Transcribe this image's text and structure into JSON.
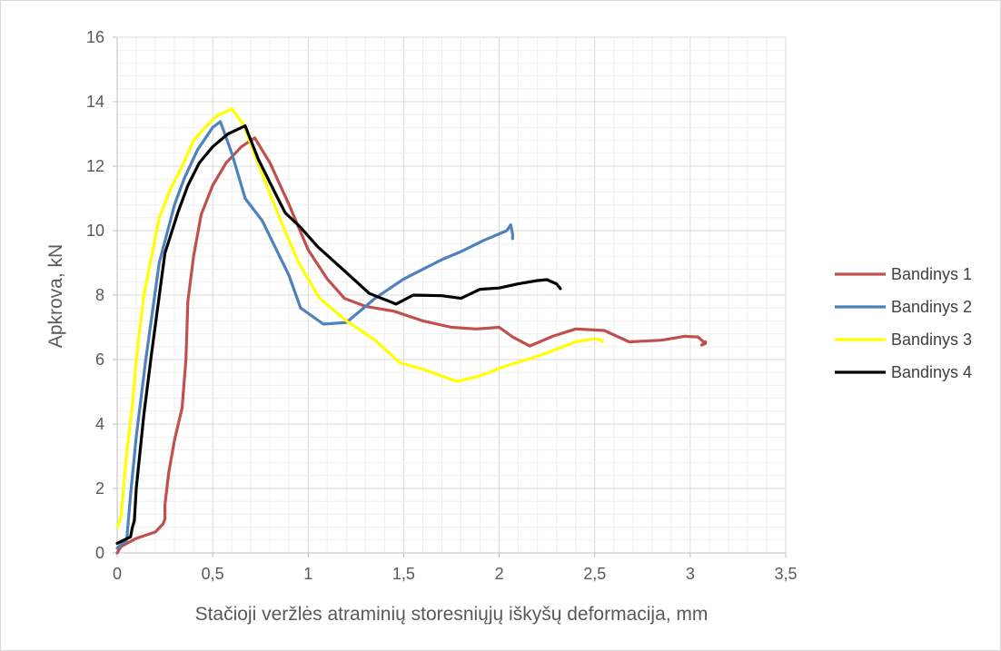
{
  "chart_data": {
    "type": "line",
    "title": "",
    "xlabel": "Stačioji veržlės atraminių storesniųjų iškyšų deformacija, mm",
    "ylabel": "Apkrova, kN",
    "xlim": [
      0,
      3.5
    ],
    "ylim": [
      0,
      16
    ],
    "x_ticks": [
      "0",
      "0,5",
      "1",
      "1,5",
      "2",
      "2,5",
      "3",
      "3,5"
    ],
    "x_tick_values": [
      0,
      0.5,
      1,
      1.5,
      2,
      2.5,
      3,
      3.5
    ],
    "y_ticks": [
      "0",
      "2",
      "4",
      "6",
      "8",
      "10",
      "12",
      "14",
      "16"
    ],
    "y_tick_values": [
      0,
      2,
      4,
      6,
      8,
      10,
      12,
      14,
      16
    ],
    "grid": "major and minor",
    "legend_position": "right",
    "series": [
      {
        "name": "Bandinys 1",
        "color": "#c0504d",
        "points": [
          [
            0,
            0
          ],
          [
            0.02,
            0.2
          ],
          [
            0.1,
            0.45
          ],
          [
            0.2,
            0.65
          ],
          [
            0.24,
            0.9
          ],
          [
            0.25,
            1.05
          ],
          [
            0.25,
            1.5
          ],
          [
            0.27,
            2.5
          ],
          [
            0.3,
            3.5
          ],
          [
            0.34,
            4.5
          ],
          [
            0.36,
            6
          ],
          [
            0.37,
            7.8
          ],
          [
            0.4,
            9.2
          ],
          [
            0.44,
            10.5
          ],
          [
            0.5,
            11.4
          ],
          [
            0.57,
            12.1
          ],
          [
            0.65,
            12.6
          ],
          [
            0.72,
            12.88
          ],
          [
            0.8,
            12.1
          ],
          [
            0.9,
            10.8
          ],
          [
            1.0,
            9.4
          ],
          [
            1.1,
            8.5
          ],
          [
            1.19,
            7.9
          ],
          [
            1.3,
            7.65
          ],
          [
            1.45,
            7.5
          ],
          [
            1.6,
            7.2
          ],
          [
            1.75,
            7.0
          ],
          [
            1.88,
            6.95
          ],
          [
            2.0,
            7.0
          ],
          [
            2.07,
            6.7
          ],
          [
            2.16,
            6.42
          ],
          [
            2.28,
            6.72
          ],
          [
            2.4,
            6.95
          ],
          [
            2.55,
            6.9
          ],
          [
            2.68,
            6.55
          ],
          [
            2.85,
            6.6
          ],
          [
            2.97,
            6.72
          ],
          [
            3.04,
            6.7
          ],
          [
            3.06,
            6.6
          ],
          [
            3.08,
            6.5
          ],
          [
            3.06,
            6.45
          ],
          [
            3.08,
            6.55
          ]
        ]
      },
      {
        "name": "Bandinys 2",
        "color": "#4f81bd",
        "points": [
          [
            0,
            0.15
          ],
          [
            0.05,
            0.4
          ],
          [
            0.07,
            1.8
          ],
          [
            0.1,
            3.6
          ],
          [
            0.15,
            6.0
          ],
          [
            0.22,
            9.0
          ],
          [
            0.3,
            10.8
          ],
          [
            0.35,
            11.6
          ],
          [
            0.42,
            12.5
          ],
          [
            0.5,
            13.2
          ],
          [
            0.54,
            13.38
          ],
          [
            0.6,
            12.4
          ],
          [
            0.67,
            11.0
          ],
          [
            0.76,
            10.3
          ],
          [
            0.9,
            8.6
          ],
          [
            0.96,
            7.6
          ],
          [
            1.08,
            7.1
          ],
          [
            1.2,
            7.15
          ],
          [
            1.35,
            7.9
          ],
          [
            1.5,
            8.5
          ],
          [
            1.7,
            9.1
          ],
          [
            1.8,
            9.35
          ],
          [
            1.92,
            9.7
          ],
          [
            2.04,
            10.0
          ],
          [
            2.06,
            10.18
          ],
          [
            2.07,
            9.9
          ],
          [
            2.07,
            9.75
          ]
        ]
      },
      {
        "name": "Bandinys 3",
        "color": "#ffff00",
        "points": [
          [
            0,
            0.8
          ],
          [
            0.02,
            1.1
          ],
          [
            0.03,
            1.8
          ],
          [
            0.05,
            3.1
          ],
          [
            0.08,
            4.6
          ],
          [
            0.1,
            6.0
          ],
          [
            0.14,
            8.0
          ],
          [
            0.18,
            9.2
          ],
          [
            0.22,
            10.4
          ],
          [
            0.28,
            11.3
          ],
          [
            0.34,
            12.0
          ],
          [
            0.4,
            12.8
          ],
          [
            0.46,
            13.2
          ],
          [
            0.52,
            13.55
          ],
          [
            0.6,
            13.78
          ],
          [
            0.66,
            13.3
          ],
          [
            0.75,
            11.9
          ],
          [
            0.85,
            10.4
          ],
          [
            0.95,
            9.0
          ],
          [
            1.06,
            7.9
          ],
          [
            1.2,
            7.2
          ],
          [
            1.35,
            6.6
          ],
          [
            1.48,
            5.9
          ],
          [
            1.6,
            5.7
          ],
          [
            1.78,
            5.32
          ],
          [
            1.9,
            5.5
          ],
          [
            2.06,
            5.85
          ],
          [
            2.2,
            6.1
          ],
          [
            2.3,
            6.32
          ],
          [
            2.4,
            6.55
          ],
          [
            2.5,
            6.65
          ],
          [
            2.53,
            6.62
          ],
          [
            2.54,
            6.55
          ]
        ]
      },
      {
        "name": "Bandinys 4",
        "color": "#000000",
        "points": [
          [
            0,
            0.3
          ],
          [
            0.07,
            0.5
          ],
          [
            0.08,
            0.8
          ],
          [
            0.09,
            1.0
          ],
          [
            0.1,
            2.0
          ],
          [
            0.14,
            4.3
          ],
          [
            0.18,
            6.2
          ],
          [
            0.25,
            9.3
          ],
          [
            0.32,
            10.6
          ],
          [
            0.37,
            11.4
          ],
          [
            0.43,
            12.1
          ],
          [
            0.5,
            12.6
          ],
          [
            0.58,
            13.0
          ],
          [
            0.67,
            13.25
          ],
          [
            0.74,
            12.2
          ],
          [
            0.85,
            10.9
          ],
          [
            0.88,
            10.55
          ],
          [
            0.96,
            10.1
          ],
          [
            1.05,
            9.5
          ],
          [
            1.2,
            8.7
          ],
          [
            1.32,
            8.05
          ],
          [
            1.46,
            7.72
          ],
          [
            1.55,
            8.0
          ],
          [
            1.7,
            7.98
          ],
          [
            1.8,
            7.9
          ],
          [
            1.9,
            8.18
          ],
          [
            2.0,
            8.22
          ],
          [
            2.1,
            8.35
          ],
          [
            2.2,
            8.45
          ],
          [
            2.25,
            8.48
          ],
          [
            2.3,
            8.35
          ],
          [
            2.32,
            8.2
          ]
        ]
      }
    ]
  }
}
